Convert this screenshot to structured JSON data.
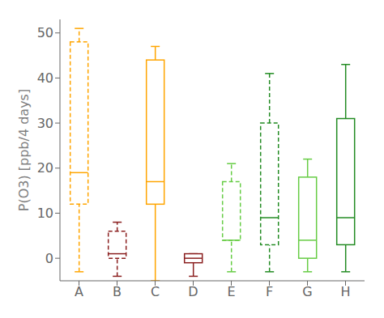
{
  "chart_data": {
    "type": "box",
    "ylabel": "P(O3) [ppb/4 days]",
    "categories": [
      "A",
      "B",
      "C",
      "D",
      "E",
      "F",
      "G",
      "H"
    ],
    "boxes": [
      {
        "color": "#FFA500",
        "line_style": "dashed",
        "whisker_low": -3,
        "q1": 12,
        "median": 19,
        "q3": 48,
        "whisker_high": 51
      },
      {
        "color": "#8B2020",
        "line_style": "dashed",
        "whisker_low": -4,
        "q1": 0,
        "median": 1,
        "q3": 6,
        "whisker_high": 8
      },
      {
        "color": "#FFA500",
        "line_style": "solid",
        "whisker_low": -5,
        "q1": 12,
        "median": 17,
        "q3": 44,
        "whisker_high": 47
      },
      {
        "color": "#8B2020",
        "line_style": "solid",
        "whisker_low": -4,
        "q1": -1,
        "median": 0,
        "q3": 1,
        "whisker_high": 1
      },
      {
        "color": "#66CC44",
        "line_style": "dashed",
        "whisker_low": -3,
        "q1": 4,
        "median": 4,
        "q3": 17,
        "whisker_high": 21
      },
      {
        "color": "#228B22",
        "line_style": "dashed",
        "whisker_low": -3,
        "q1": 3,
        "median": 9,
        "q3": 30,
        "whisker_high": 41
      },
      {
        "color": "#66CC44",
        "line_style": "solid",
        "whisker_low": -3,
        "q1": 0,
        "median": 4,
        "q3": 18,
        "whisker_high": 22
      },
      {
        "color": "#228B22",
        "line_style": "solid",
        "whisker_low": -3,
        "q1": 3,
        "median": 9,
        "q3": 31,
        "whisker_high": 43
      }
    ],
    "ylim": [
      -5,
      53
    ],
    "yticks": [
      0,
      10,
      20,
      30,
      40,
      50
    ]
  }
}
